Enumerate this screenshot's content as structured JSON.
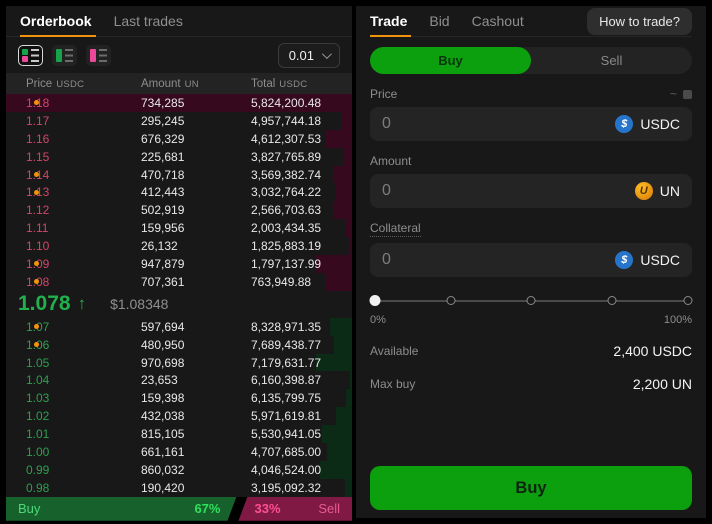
{
  "colors": {
    "accent_orange": "#ef920e",
    "ask_red": "#cf4668",
    "bid_green": "#2f9e4f",
    "mid_green": "#21b14c",
    "flag_orange": "#f5940a",
    "buy_green": "#0ca00f",
    "usdc_blue": "#2775ca",
    "un_orange": "#f59e0b",
    "ratio_buy_bg": "#17612c",
    "ratio_sell_bg": "#801a45",
    "pct_green": "#2ee05b",
    "pct_pink": "#ff4f93"
  },
  "orderbook": {
    "tabs": [
      {
        "label": "Orderbook",
        "active": true
      },
      {
        "label": "Last trades",
        "active": false
      }
    ],
    "view_modes": [
      "combined",
      "bids-only",
      "asks-only"
    ],
    "selected_view_mode": "combined",
    "tick_size": "0.01",
    "columns": [
      {
        "label": "Price",
        "unit": "USDC"
      },
      {
        "label": "Amount",
        "unit": "UN"
      },
      {
        "label": "Total",
        "unit": "USDC"
      }
    ],
    "asks": [
      {
        "price": "1.18",
        "amount": "734,285",
        "total": "5,824,200.48",
        "flag": true,
        "highlight": true
      },
      {
        "price": "1.17",
        "amount": "295,245",
        "total": "4,957,744.18",
        "flag": false,
        "highlight": false
      },
      {
        "price": "1.16",
        "amount": "676,329",
        "total": "4,612,307.53",
        "flag": false,
        "highlight": false
      },
      {
        "price": "1.15",
        "amount": "225,681",
        "total": "3,827,765.89",
        "flag": false,
        "highlight": false
      },
      {
        "price": "1.14",
        "amount": "470,718",
        "total": "3,569,382.74",
        "flag": true,
        "highlight": false
      },
      {
        "price": "1.13",
        "amount": "412,443",
        "total": "3,032,764.22",
        "flag": true,
        "highlight": false
      },
      {
        "price": "1.12",
        "amount": "502,919",
        "total": "2,566,703.63",
        "flag": false,
        "highlight": false
      },
      {
        "price": "1.11",
        "amount": "159,956",
        "total": "2,003,434.35",
        "flag": false,
        "highlight": false
      },
      {
        "price": "1.10",
        "amount": "26,132",
        "total": "1,825,883.19",
        "flag": false,
        "highlight": false
      },
      {
        "price": "1.09",
        "amount": "947,879",
        "total": "1,797,137.99",
        "flag": true,
        "highlight": false
      },
      {
        "price": "1.08",
        "amount": "707,361",
        "total": "763,949.88",
        "flag": true,
        "highlight": false
      }
    ],
    "mid": {
      "price": "1.078",
      "arrow": "↑",
      "direction": "up",
      "usd": "$1.08348"
    },
    "bids": [
      {
        "price": "1.07",
        "amount": "597,694",
        "total": "8,328,971.35",
        "flag": true,
        "highlight": false
      },
      {
        "price": "1.06",
        "amount": "480,950",
        "total": "7,689,438.77",
        "flag": true,
        "highlight": false
      },
      {
        "price": "1.05",
        "amount": "970,698",
        "total": "7,179,631.77",
        "flag": false,
        "highlight": false
      },
      {
        "price": "1.04",
        "amount": "23,653",
        "total": "6,160,398.87",
        "flag": false,
        "highlight": false
      },
      {
        "price": "1.03",
        "amount": "159,398",
        "total": "6,135,799.75",
        "flag": false,
        "highlight": false
      },
      {
        "price": "1.02",
        "amount": "432,038",
        "total": "5,971,619.81",
        "flag": false,
        "highlight": false
      },
      {
        "price": "1.01",
        "amount": "815,105",
        "total": "5,530,941.05",
        "flag": false,
        "highlight": false
      },
      {
        "price": "1.00",
        "amount": "661,161",
        "total": "4,707,685.00",
        "flag": false,
        "highlight": false
      },
      {
        "price": "0.99",
        "amount": "860,032",
        "total": "4,046,524.00",
        "flag": false,
        "highlight": false
      },
      {
        "price": "0.98",
        "amount": "190,420",
        "total": "3,195,092.32",
        "flag": false,
        "highlight": false
      }
    ],
    "ratio": {
      "buy_label": "Buy",
      "buy_pct": "67%",
      "sell_pct": "33%",
      "sell_label": "Sell"
    }
  },
  "trade": {
    "tabs": [
      {
        "label": "Trade",
        "active": true
      },
      {
        "label": "Bid",
        "active": false
      },
      {
        "label": "Cashout",
        "active": false
      }
    ],
    "help_button": "How to trade?",
    "side_toggle": {
      "buy": "Buy",
      "sell": "Sell",
      "active": "buy"
    },
    "fields": [
      {
        "label": "Price",
        "value": "",
        "placeholder": "0",
        "asset": "USDC",
        "icon": "usdc-icon",
        "hint": "~"
      },
      {
        "label": "Amount",
        "value": "",
        "placeholder": "0",
        "asset": "UN",
        "icon": "un-icon",
        "hint": ""
      },
      {
        "label": "Collateral",
        "value": "",
        "placeholder": "0",
        "asset": "USDC",
        "icon": "usdc-icon",
        "hint": ""
      }
    ],
    "slider": {
      "value_pct": 0,
      "stops": [
        0,
        25,
        50,
        75,
        100
      ],
      "min_label": "0%",
      "max_label": "100%"
    },
    "summary": [
      {
        "label": "Available",
        "value": "2,400 USDC"
      },
      {
        "label": "Max buy",
        "value": "2,200 UN"
      }
    ],
    "submit_label": "Buy"
  }
}
